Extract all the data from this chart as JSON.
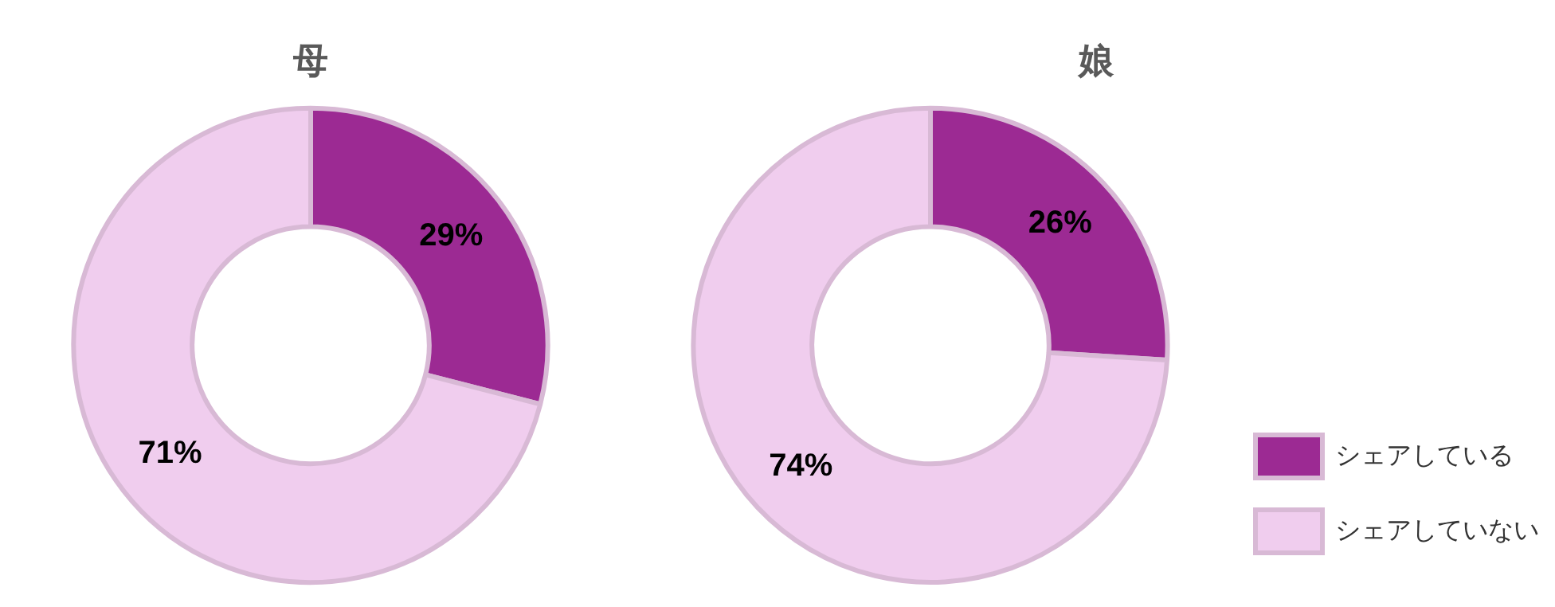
{
  "chart_data": [
    {
      "type": "donut",
      "title": "母",
      "categories": [
        null,
        null
      ],
      "values": [
        29,
        71
      ],
      "colors": [
        "#9c2a93",
        "#f0cdee"
      ],
      "value_labels": [
        "29%",
        "71%"
      ],
      "legend": false
    },
    {
      "type": "donut",
      "title": "娘",
      "categories": [
        "シェアしている",
        "シェアしていない"
      ],
      "values": [
        26,
        74
      ],
      "colors": [
        "#9c2a93",
        "#f0cdee"
      ],
      "value_labels": [
        "26%",
        "74%"
      ],
      "legend": "bottom right"
    }
  ]
}
